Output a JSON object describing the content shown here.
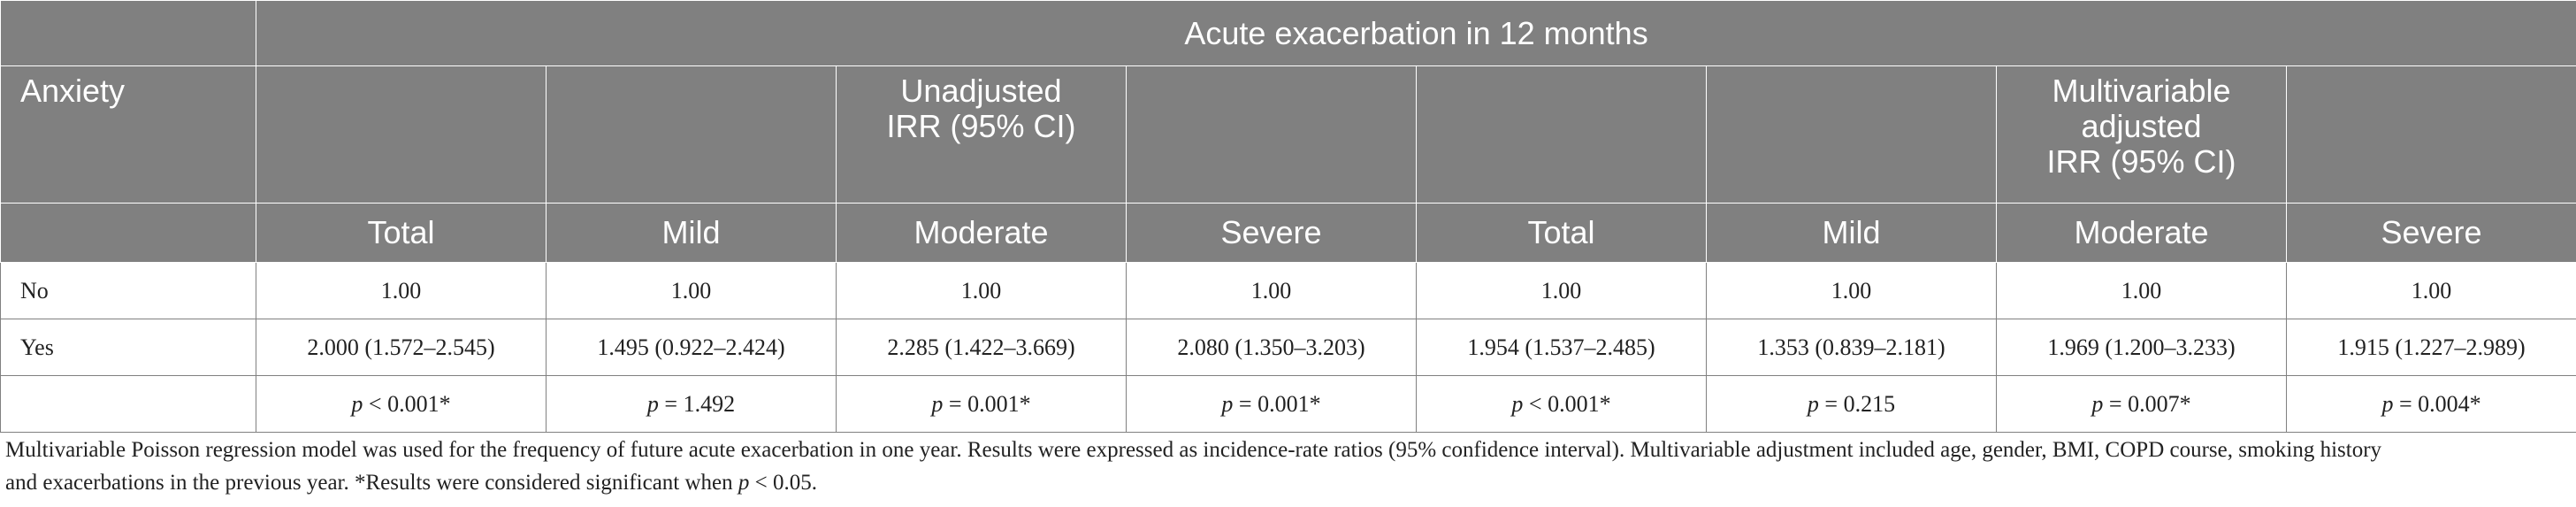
{
  "table": {
    "title": "Acute exacerbation in 12 months",
    "row_header": "Anxiety",
    "groups": [
      {
        "label": "Unadjusted IRR (95% CI)",
        "lines": [
          "Unadjusted",
          "IRR (95% CI)"
        ]
      },
      {
        "label": "Multivariable adjusted IRR (95% CI)",
        "lines": [
          "Multivariable",
          "adjusted",
          "IRR (95% CI)"
        ]
      }
    ],
    "columns": [
      "Total",
      "Mild",
      "Moderate",
      "Severe",
      "Total",
      "Mild",
      "Moderate",
      "Severe"
    ],
    "rows": [
      {
        "label": "No",
        "cells": [
          "1.00",
          "1.00",
          "1.00",
          "1.00",
          "1.00",
          "1.00",
          "1.00",
          "1.00"
        ]
      },
      {
        "label": "Yes",
        "cells": [
          "2.000 (1.572–2.545)",
          "1.495 (0.922–2.424)",
          "2.285 (1.422–3.669)",
          "2.080 (1.350–3.203)",
          "1.954 (1.537–2.485)",
          "1.353 (0.839–2.181)",
          "1.969 (1.200–3.233)",
          "1.915 (1.227–2.989)"
        ]
      },
      {
        "label": "",
        "p_symbol": "p",
        "cells": [
          "< 0.001*",
          "= 1.492",
          "= 0.001*",
          "= 0.001*",
          "< 0.001*",
          "= 0.215",
          "= 0.007*",
          "= 0.004*"
        ]
      }
    ]
  },
  "footnote": {
    "line1": "Multivariable Poisson regression model was used for the frequency of future acute exacerbation in one year. Results were expressed as incidence-rate ratios (95% confidence interval). Multivariable adjustment included age, gender, BMI, COPD course, smoking history",
    "line2_before": "and exacerbations in the previous year. *Results were considered significant when ",
    "line2_symbol": "p",
    "line2_after": " < 0.05."
  }
}
